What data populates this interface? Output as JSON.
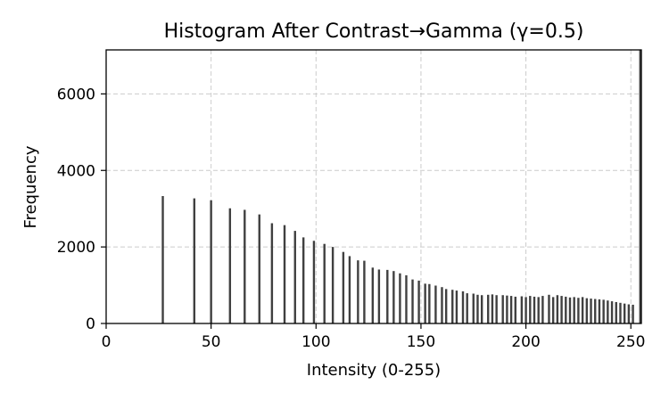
{
  "chart_data": {
    "type": "bar",
    "title": "Histogram After Contrast→Gamma (γ=0.5)",
    "xlabel": "Intensity (0-255)",
    "ylabel": "Frequency",
    "xlim": [
      0,
      255
    ],
    "ylim": [
      0,
      7150
    ],
    "grid": true,
    "xticks": [
      0,
      50,
      100,
      150,
      200,
      250
    ],
    "yticks": [
      0,
      2000,
      4000,
      6000
    ],
    "x": [
      27,
      42,
      50,
      59,
      66,
      73,
      79,
      85,
      90,
      94,
      99,
      104,
      108,
      113,
      116,
      120,
      123,
      127,
      130,
      134,
      137,
      140,
      143,
      146,
      149,
      152,
      154,
      157,
      160,
      162,
      165,
      167,
      170,
      172,
      175,
      177,
      179,
      182,
      184,
      186,
      189,
      191,
      193,
      195,
      198,
      200,
      202,
      204,
      206,
      208,
      211,
      213,
      215,
      217,
      219,
      221,
      223,
      225,
      227,
      229,
      231,
      233,
      235,
      237,
      239,
      241,
      243,
      245,
      247,
      249,
      251,
      255
    ],
    "values": [
      3330,
      3270,
      3220,
      3010,
      2970,
      2850,
      2620,
      2570,
      2420,
      2250,
      2160,
      2080,
      2000,
      1870,
      1760,
      1650,
      1640,
      1460,
      1410,
      1400,
      1370,
      1310,
      1260,
      1150,
      1120,
      1040,
      1030,
      990,
      950,
      900,
      880,
      860,
      840,
      790,
      780,
      750,
      740,
      750,
      760,
      740,
      740,
      730,
      720,
      700,
      710,
      690,
      720,
      700,
      690,
      720,
      750,
      690,
      740,
      720,
      700,
      680,
      690,
      670,
      690,
      660,
      650,
      640,
      630,
      620,
      600,
      580,
      560,
      540,
      520,
      500,
      490,
      7150
    ]
  }
}
